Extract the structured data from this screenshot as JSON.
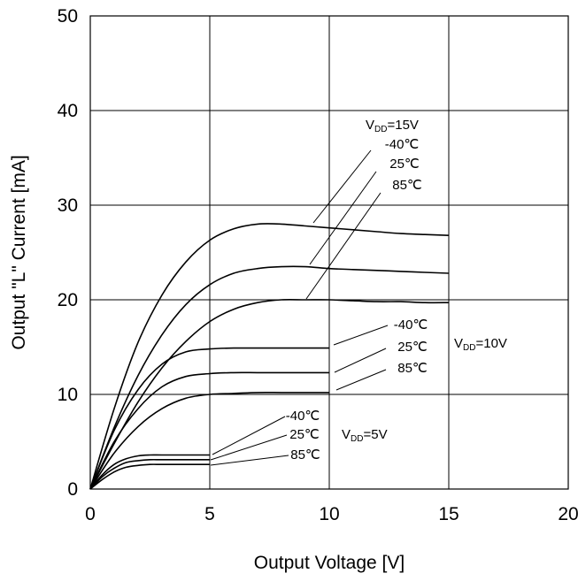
{
  "chart_data": {
    "type": "line",
    "xlabel": "Output Voltage [V]",
    "ylabel": "Output \"L\" Current [mA]",
    "xlim": [
      0,
      20
    ],
    "ylim": [
      0,
      50
    ],
    "xticks": [
      "0",
      "5",
      "10",
      "15",
      "20"
    ],
    "yticks": [
      "0",
      "10",
      "20",
      "30",
      "40",
      "50"
    ],
    "grid": true,
    "line_color": "#000000",
    "series": [
      {
        "vdd": 15,
        "temp": "-40℃",
        "x": [
          0,
          1,
          2,
          3,
          4,
          5,
          6,
          7,
          8,
          9,
          10,
          11,
          12,
          13,
          14,
          15
        ],
        "y": [
          0,
          8.5,
          15.5,
          20.5,
          24.0,
          26.3,
          27.5,
          28.0,
          28.0,
          27.8,
          27.6,
          27.4,
          27.2,
          27.0,
          26.9,
          26.8
        ]
      },
      {
        "vdd": 15,
        "temp": "25℃",
        "x": [
          0,
          1,
          2,
          3,
          4,
          5,
          6,
          7,
          8,
          9,
          10,
          11,
          12,
          13,
          14,
          15
        ],
        "y": [
          0,
          6.5,
          12.0,
          16.3,
          19.5,
          21.6,
          22.8,
          23.3,
          23.5,
          23.5,
          23.3,
          23.2,
          23.1,
          23.0,
          22.9,
          22.8
        ]
      },
      {
        "vdd": 15,
        "temp": "85℃",
        "x": [
          0,
          1,
          2,
          3,
          4,
          5,
          6,
          7,
          8,
          9,
          10,
          11,
          12,
          13,
          14,
          15
        ],
        "y": [
          0,
          4.8,
          9.2,
          12.8,
          15.6,
          17.7,
          19.0,
          19.7,
          20.0,
          20.0,
          20.0,
          19.9,
          19.8,
          19.8,
          19.7,
          19.7
        ]
      },
      {
        "vdd": 10,
        "temp": "-40℃",
        "x": [
          0,
          1,
          2,
          3,
          4,
          5,
          6,
          7,
          8,
          9,
          10
        ],
        "y": [
          0,
          6.2,
          10.5,
          13.2,
          14.5,
          14.8,
          14.9,
          14.9,
          14.9,
          14.9,
          14.9
        ]
      },
      {
        "vdd": 10,
        "temp": "25℃",
        "x": [
          0,
          1,
          2,
          3,
          4,
          5,
          6,
          7,
          8,
          9,
          10
        ],
        "y": [
          0,
          5.0,
          8.5,
          10.8,
          11.9,
          12.2,
          12.3,
          12.3,
          12.3,
          12.3,
          12.3
        ]
      },
      {
        "vdd": 10,
        "temp": "85℃",
        "x": [
          0,
          1,
          2,
          3,
          4,
          5,
          6,
          7,
          8,
          9,
          10
        ],
        "y": [
          0,
          3.8,
          6.6,
          8.5,
          9.6,
          10.0,
          10.1,
          10.2,
          10.2,
          10.2,
          10.2
        ]
      },
      {
        "vdd": 5,
        "temp": "-40℃",
        "x": [
          0,
          0.5,
          1,
          1.5,
          2,
          2.5,
          3,
          4,
          5
        ],
        "y": [
          0,
          1.5,
          2.6,
          3.2,
          3.5,
          3.6,
          3.6,
          3.6,
          3.6
        ]
      },
      {
        "vdd": 5,
        "temp": "25℃",
        "x": [
          0,
          0.5,
          1,
          1.5,
          2,
          2.5,
          3,
          4,
          5
        ],
        "y": [
          0,
          1.3,
          2.2,
          2.8,
          3.0,
          3.1,
          3.1,
          3.1,
          3.1
        ]
      },
      {
        "vdd": 5,
        "temp": "85℃",
        "x": [
          0,
          0.5,
          1,
          1.5,
          2,
          2.5,
          3,
          4,
          5
        ],
        "y": [
          0,
          1.0,
          1.8,
          2.3,
          2.5,
          2.6,
          2.6,
          2.6,
          2.6
        ]
      }
    ],
    "annotations": {
      "vdd15": {
        "prefix": "V",
        "sub": "DD",
        "suffix": "=15V"
      },
      "vdd10": {
        "prefix": "V",
        "sub": "DD",
        "suffix": "=10V"
      },
      "vdd5": {
        "prefix": "V",
        "sub": "DD",
        "suffix": "=5V"
      },
      "temps": [
        "-40℃",
        "25℃",
        "85℃"
      ]
    }
  }
}
